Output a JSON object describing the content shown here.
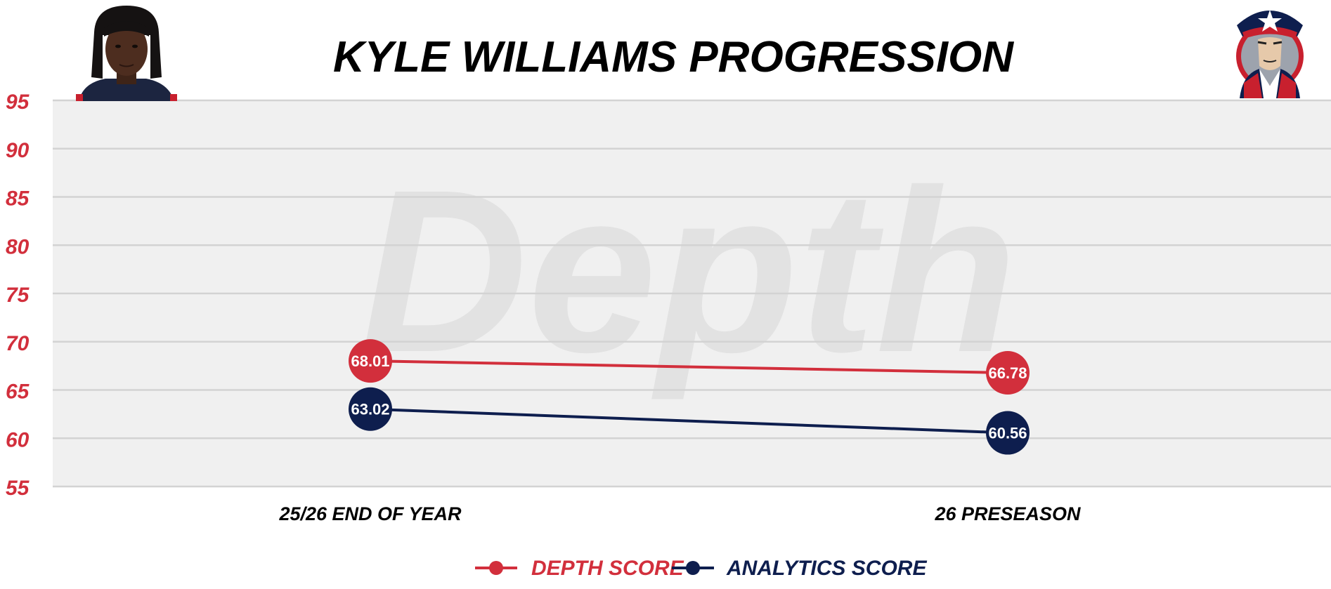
{
  "chart_data": {
    "type": "line",
    "title": "KYLE WILLIAMS PROGRESSION",
    "categories": [
      "25/26 END OF YEAR",
      "26 PRESEASON"
    ],
    "series": [
      {
        "name": "DEPTH SCORE",
        "values": [
          68.01,
          66.78
        ],
        "color": "#d22f3c"
      },
      {
        "name": "ANALYTICS SCORE",
        "values": [
          63.02,
          60.56
        ],
        "color": "#0e1e4e"
      }
    ],
    "ylim": [
      55,
      95
    ],
    "yticks": [
      95,
      90,
      85,
      80,
      75,
      70,
      65,
      60,
      55
    ],
    "grid": true,
    "legend_position": "bottom-center",
    "watermark": "Depth",
    "player_photo_icon": "player-headshot",
    "team_logo_icon": "patriot-logo"
  },
  "colors": {
    "axis_label": "#d22f3c",
    "plot_bg": "#f0f0f0",
    "grid": "#d3d3d3",
    "title": "#000000",
    "watermark": "#e2e2e2"
  }
}
